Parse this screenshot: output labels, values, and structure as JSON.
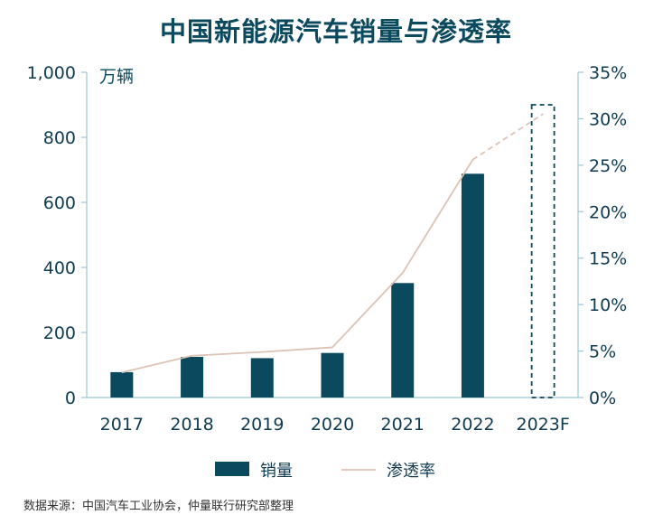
{
  "chart_data": {
    "type": "bar",
    "title": "中国新能源汽车销量与渗透率",
    "unit_label": "万辆",
    "categories": [
      "2017",
      "2018",
      "2019",
      "2020",
      "2021",
      "2022",
      "2023F"
    ],
    "series": [
      {
        "name": "销量",
        "type": "bar",
        "axis": "left",
        "values": [
          78,
          125,
          121,
          137,
          352,
          688,
          null
        ]
      },
      {
        "name": "渗透率",
        "type": "line",
        "axis": "right",
        "values": [
          2.7,
          4.5,
          4.9,
          5.4,
          13.4,
          25.6,
          30.5
        ]
      }
    ],
    "projection": {
      "category": "2023F",
      "bar_outline_value": 1000
    },
    "y_left": {
      "ticks": [
        "0",
        "200",
        "400",
        "600",
        "800",
        "1,000"
      ],
      "range": [
        0,
        1000
      ]
    },
    "y_right": {
      "ticks": [
        "0%",
        "5%",
        "10%",
        "15%",
        "20%",
        "25%",
        "30%",
        "35%"
      ],
      "range": [
        0,
        35
      ]
    },
    "legend_position": "bottom",
    "grid": false,
    "colors": {
      "bar": "#0b4a5e",
      "line": "#dcc3b4",
      "axis": "#9cc6d3",
      "text": "#0f3b52"
    }
  },
  "source_note": "数据来源：中国汽车工业协会，仲量联行研究部整理"
}
